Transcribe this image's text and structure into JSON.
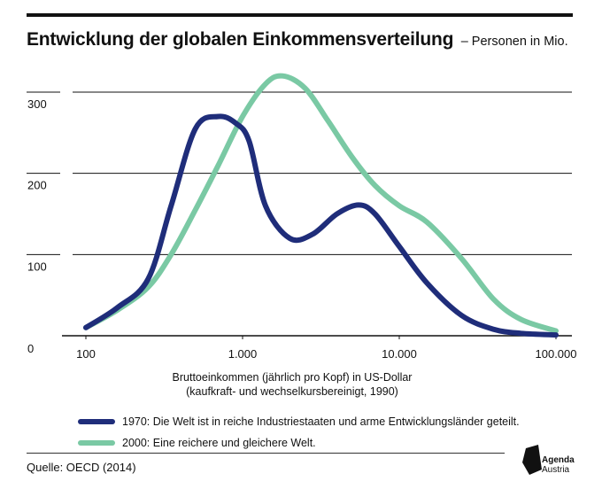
{
  "header": {
    "title": "Entwicklung der globalen Einkommensverteilung",
    "subtitle": "– Personen in Mio."
  },
  "chart_data": {
    "type": "line",
    "title": "Entwicklung der globalen Einkommensverteilung",
    "subtitle": "– Personen in Mio.",
    "xlabel": "Bruttoeinkommen (jährlich pro Kopf) in US-Dollar",
    "xlabel_note": "(kaufkraft- und wechselkursbereinigt, 1990)",
    "ylabel": "",
    "x_scale": "log",
    "xlim": [
      100,
      100000
    ],
    "ylim": [
      0,
      300
    ],
    "x_ticks": [
      100,
      1000,
      10000,
      100000
    ],
    "x_tick_labels": [
      "100",
      "1.000",
      "10.000",
      "100.000"
    ],
    "y_ticks": [
      0,
      100,
      200,
      300
    ],
    "y_tick_labels": [
      "0",
      "100",
      "200",
      "300"
    ],
    "grid": true,
    "legend_position": "bottom",
    "series": [
      {
        "name": "1970: Die Welt ist in reiche Industriestaaten und arme Entwicklungsländer geteilt.",
        "color": "#1f2d7a",
        "x": [
          100,
          160,
          250,
          350,
          500,
          700,
          900,
          1100,
          1400,
          2000,
          2800,
          4000,
          5500,
          7000,
          10000,
          15000,
          25000,
          40000,
          60000,
          100000
        ],
        "y": [
          10,
          35,
          70,
          160,
          255,
          270,
          262,
          240,
          160,
          120,
          125,
          150,
          161,
          150,
          110,
          65,
          25,
          8,
          3,
          1
        ]
      },
      {
        "name": "2000: Eine reichere und gleichere Welt.",
        "color": "#7ac9a4",
        "x": [
          100,
          160,
          250,
          350,
          500,
          700,
          1000,
          1400,
          1800,
          2500,
          3500,
          5000,
          7000,
          10000,
          15000,
          25000,
          40000,
          60000,
          100000
        ],
        "y": [
          10,
          32,
          60,
          100,
          155,
          210,
          270,
          310,
          320,
          305,
          265,
          220,
          185,
          160,
          140,
          95,
          45,
          20,
          6
        ]
      }
    ]
  },
  "footer": {
    "source": "Quelle: OECD (2014)",
    "logo_line1": "Agenda",
    "logo_line2": "Austria"
  }
}
